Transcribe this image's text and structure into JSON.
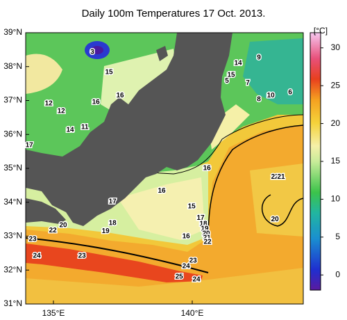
{
  "title": "Daily 100m Temperatures 17 Oct. 2013.",
  "map": {
    "lon_range": [
      134,
      144
    ],
    "lat_range": [
      31,
      39
    ],
    "lat_ticks": [
      {
        "value": 31,
        "label": "31°N"
      },
      {
        "value": 32,
        "label": "32°N"
      },
      {
        "value": 33,
        "label": "33°N"
      },
      {
        "value": 34,
        "label": "34°N"
      },
      {
        "value": 35,
        "label": "35°N"
      },
      {
        "value": 36,
        "label": "36°N"
      },
      {
        "value": 37,
        "label": "37°N"
      },
      {
        "value": 38,
        "label": "38°N"
      },
      {
        "value": 39,
        "label": "39°N"
      }
    ],
    "lon_ticks": [
      {
        "value": 135,
        "label": "135°E"
      },
      {
        "value": 140,
        "label": "140°E"
      }
    ],
    "contour_labels": [
      {
        "value": 3,
        "lon": 136.4,
        "lat": 38.43
      },
      {
        "value": 15,
        "lon": 137.0,
        "lat": 37.83
      },
      {
        "value": 16,
        "lon": 137.4,
        "lat": 37.15
      },
      {
        "value": 16,
        "lon": 136.53,
        "lat": 36.95
      },
      {
        "value": 12,
        "lon": 134.83,
        "lat": 36.91
      },
      {
        "value": 12,
        "lon": 135.28,
        "lat": 36.68
      },
      {
        "value": 14,
        "lon": 135.6,
        "lat": 36.13
      },
      {
        "value": 11,
        "lon": 136.13,
        "lat": 36.21
      },
      {
        "value": 17,
        "lon": 134.13,
        "lat": 35.68
      },
      {
        "value": 14,
        "lon": 141.65,
        "lat": 38.1
      },
      {
        "value": 15,
        "lon": 141.4,
        "lat": 37.75
      },
      {
        "value": 5,
        "lon": 141.25,
        "lat": 37.58
      },
      {
        "value": 9,
        "lon": 142.4,
        "lat": 38.26
      },
      {
        "value": 7,
        "lon": 142.0,
        "lat": 37.52
      },
      {
        "value": 8,
        "lon": 142.4,
        "lat": 37.03
      },
      {
        "value": 10,
        "lon": 142.83,
        "lat": 37.15
      },
      {
        "value": 6,
        "lon": 143.53,
        "lat": 37.24
      },
      {
        "value": 16,
        "lon": 140.53,
        "lat": 35.0
      },
      {
        "value": 22,
        "lon": 142.98,
        "lat": 34.75
      },
      {
        "value": 21,
        "lon": 143.2,
        "lat": 34.75
      },
      {
        "value": 16,
        "lon": 138.9,
        "lat": 34.34
      },
      {
        "value": 17,
        "lon": 137.13,
        "lat": 34.02
      },
      {
        "value": 15,
        "lon": 139.98,
        "lat": 33.87
      },
      {
        "value": 17,
        "lon": 140.3,
        "lat": 33.54
      },
      {
        "value": 18,
        "lon": 137.13,
        "lat": 33.38
      },
      {
        "value": 18,
        "lon": 140.4,
        "lat": 33.36
      },
      {
        "value": 19,
        "lon": 140.45,
        "lat": 33.22
      },
      {
        "value": 20,
        "lon": 140.5,
        "lat": 33.07
      },
      {
        "value": 21,
        "lon": 140.53,
        "lat": 32.95
      },
      {
        "value": 22,
        "lon": 140.55,
        "lat": 32.83
      },
      {
        "value": 19,
        "lon": 136.88,
        "lat": 33.15
      },
      {
        "value": 20,
        "lon": 135.35,
        "lat": 33.32
      },
      {
        "value": 22,
        "lon": 134.98,
        "lat": 33.17
      },
      {
        "value": 16,
        "lon": 139.78,
        "lat": 32.99
      },
      {
        "value": 23,
        "lon": 134.25,
        "lat": 32.91
      },
      {
        "value": 24,
        "lon": 134.4,
        "lat": 32.42
      },
      {
        "value": 23,
        "lon": 136.03,
        "lat": 32.42
      },
      {
        "value": 20,
        "lon": 142.98,
        "lat": 33.5
      },
      {
        "value": 23,
        "lon": 140.03,
        "lat": 32.27
      },
      {
        "value": 24,
        "lon": 139.78,
        "lat": 32.11
      },
      {
        "value": 25,
        "lon": 139.53,
        "lat": 31.8
      },
      {
        "value": 24,
        "lon": 140.15,
        "lat": 31.72
      }
    ]
  },
  "colorbar": {
    "unit": "[°C]",
    "range": [
      -2,
      32
    ],
    "ticks": [
      0,
      5,
      10,
      15,
      20,
      25,
      30
    ]
  }
}
